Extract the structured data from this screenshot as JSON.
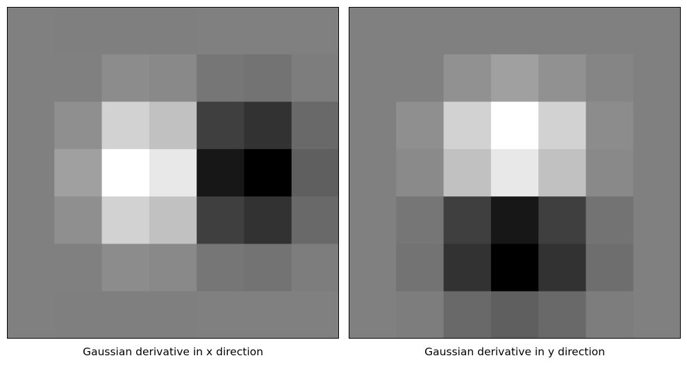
{
  "chart_data": [
    {
      "type": "heatmap",
      "title": "Gaussian derivative in x direction",
      "colormap": "gray",
      "grid": false,
      "axes_ticks": false,
      "value_range": [
        0,
        255
      ],
      "values": [
        [
          128,
          127,
          127,
          127,
          128,
          128,
          128
        ],
        [
          128,
          128,
          140,
          137,
          118,
          115,
          125
        ],
        [
          128,
          143,
          210,
          193,
          63,
          50,
          105
        ],
        [
          128,
          160,
          255,
          232,
          23,
          0,
          95
        ],
        [
          128,
          143,
          210,
          193,
          63,
          50,
          105
        ],
        [
          128,
          128,
          140,
          137,
          118,
          115,
          125
        ],
        [
          128,
          127,
          127,
          127,
          128,
          128,
          128
        ]
      ]
    },
    {
      "type": "heatmap",
      "title": "Gaussian derivative in y direction",
      "colormap": "gray",
      "grid": false,
      "axes_ticks": false,
      "value_range": [
        0,
        255
      ],
      "values": [
        [
          128,
          128,
          128,
          128,
          128,
          128,
          128
        ],
        [
          128,
          128,
          145,
          160,
          145,
          133,
          128
        ],
        [
          128,
          143,
          210,
          255,
          210,
          140,
          128
        ],
        [
          128,
          138,
          193,
          232,
          193,
          137,
          128
        ],
        [
          128,
          118,
          63,
          23,
          63,
          115,
          128
        ],
        [
          128,
          115,
          50,
          0,
          50,
          110,
          128
        ],
        [
          128,
          125,
          105,
          95,
          105,
          125,
          128
        ]
      ]
    }
  ]
}
